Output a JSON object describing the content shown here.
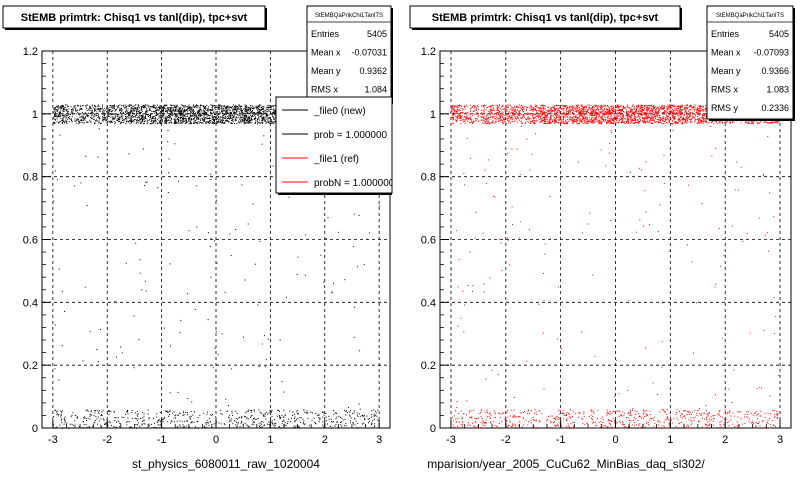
{
  "colors": {
    "background": "#ffffff",
    "frame": "#000000",
    "grid": "#000000",
    "new_series": "#000000",
    "ref_series": "#ff0000"
  },
  "chart_data": [
    {
      "type": "scatter",
      "title": "StEMB primtrk: Chisq1 vs tanl(dip), tpc+svt",
      "xlabel": "st_physics_6080011_raw_1020004",
      "ylabel": "",
      "xlim": [
        -3.2,
        3.2
      ],
      "ylim": [
        0,
        1.2
      ],
      "xticks": [
        "-3",
        "-2",
        "-1",
        "0",
        "1",
        "2",
        "3"
      ],
      "yticks": [
        "0",
        "0.2",
        "0.4",
        "0.6",
        "0.8",
        "1",
        "1.2"
      ],
      "grid": true,
      "color": "#000000",
      "stats": {
        "name": "StEMBQaPrikChi1TanlTS",
        "rows": [
          {
            "label": "Entries",
            "value": "5405"
          },
          {
            "label": "Mean x",
            "value": "-0.07031"
          },
          {
            "label": "Mean y",
            "value": "0.9362"
          },
          {
            "label": "RMS x",
            "value": "1.084"
          }
        ]
      },
      "legend": {
        "placement": "top-right",
        "entries": [
          {
            "label": "_file0 (new)",
            "color": "#000000"
          },
          {
            "label": "prob = 1.000000",
            "color": "#000000"
          },
          {
            "label": "_file1 (ref)",
            "color": "#ff0000"
          },
          {
            "label": "probN = 1.000000",
            "color": "#ff0000"
          }
        ]
      },
      "bands": [
        {
          "x": [
            -3.0,
            3.0
          ],
          "y": [
            0.97,
            1.03
          ],
          "count": 3000,
          "peak_center": 0.0,
          "peak_width": 1.6
        },
        {
          "x": [
            -3.0,
            3.0
          ],
          "y": [
            0.0,
            0.06
          ],
          "count": 650,
          "peak_center": 0.0,
          "peak_width": 3.0
        },
        {
          "x": [
            -3.0,
            3.0
          ],
          "y": [
            0.06,
            0.97
          ],
          "count": 160,
          "peak_center": 0.0,
          "peak_width": 3.0
        }
      ]
    },
    {
      "type": "scatter",
      "title": "StEMB primtrk: Chisq1 vs tanl(dip), tpc+svt",
      "xlabel": "mparision/year_2005_CuCu62_MinBias_daq_sl302/",
      "ylabel": "",
      "xlim": [
        -3.2,
        3.2
      ],
      "ylim": [
        0,
        1.2
      ],
      "xticks": [
        "-3",
        "-2",
        "-1",
        "0",
        "1",
        "2",
        "3"
      ],
      "yticks": [
        "0",
        "0.2",
        "0.4",
        "0.6",
        "0.8",
        "1",
        "1.2"
      ],
      "grid": true,
      "color": "#ff0000",
      "stats": {
        "name": "StEMBQaPrikChi1TanlTS",
        "rows": [
          {
            "label": "Entries",
            "value": "5405"
          },
          {
            "label": "Mean x",
            "value": "-0.07093"
          },
          {
            "label": "Mean y",
            "value": "0.9366"
          },
          {
            "label": "RMS x",
            "value": "1.083"
          },
          {
            "label": "RMS y",
            "value": "0.2336"
          }
        ]
      },
      "bands": [
        {
          "x": [
            -3.0,
            3.0
          ],
          "y": [
            0.97,
            1.03
          ],
          "count": 3000,
          "peak_center": 0.0,
          "peak_width": 1.6
        },
        {
          "x": [
            -3.0,
            3.0
          ],
          "y": [
            0.0,
            0.06
          ],
          "count": 650,
          "peak_center": 0.0,
          "peak_width": 3.0
        },
        {
          "x": [
            -3.0,
            3.0
          ],
          "y": [
            0.06,
            0.97
          ],
          "count": 160,
          "peak_center": 0.0,
          "peak_width": 3.0
        }
      ]
    }
  ]
}
